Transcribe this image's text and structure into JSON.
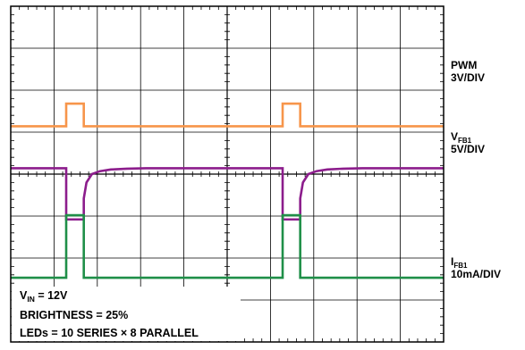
{
  "chart_data": {
    "type": "line",
    "grid": {
      "divisions_x": 10,
      "divisions_y": 8,
      "minor_ticks_per_div": 5,
      "shown": true
    },
    "conditions": {
      "vin": {
        "symbol": "V",
        "subscript": "IN",
        "value": " = 12V"
      },
      "brightness": "BRIGHTNESS = 25%",
      "leds": "LEDs = 10 SERIES × 8 PARALLEL"
    },
    "series": [
      {
        "key": "pwm",
        "name": "PWM",
        "scale": "3V/DIV",
        "color": "#f7954a",
        "x_div": [
          0,
          2.05,
          2.05,
          2.7,
          2.7,
          10.05,
          10.05,
          10.7,
          10.7,
          16
        ],
        "y_div": [
          1.14,
          1.14,
          1.68,
          1.68,
          1.14,
          1.14,
          1.68,
          1.68,
          1.14,
          1.14
        ]
      },
      {
        "key": "vfb1",
        "name": "V",
        "subscript": "FB1",
        "scale": "5V/DIV",
        "color": "#8c1d8c",
        "x_div": [
          0,
          2.05,
          2.05,
          2.7,
          2.7,
          2.8,
          3.0,
          3.3,
          3.7,
          4.3,
          5.0,
          10.05,
          10.05,
          10.7,
          10.7,
          10.8,
          11.0,
          11.3,
          11.7,
          12.3,
          13.0,
          16
        ],
        "y_div": [
          0.14,
          0.14,
          -1.08,
          -1.08,
          -0.58,
          -0.2,
          0.0,
          0.07,
          0.11,
          0.13,
          0.14,
          0.14,
          -1.08,
          -1.08,
          -0.58,
          -0.2,
          0.0,
          0.07,
          0.11,
          0.13,
          0.14,
          0.14
        ]
      },
      {
        "key": "ifb1",
        "name": "I",
        "subscript": "FB1",
        "scale": "10mA/DIV",
        "color": "#1f8f48",
        "x_div": [
          0,
          2.05,
          2.05,
          2.7,
          2.7,
          10.05,
          10.05,
          10.7,
          10.7,
          16
        ],
        "y_div": [
          -2.47,
          -2.47,
          -0.98,
          -0.98,
          -2.47,
          -2.47,
          -0.98,
          -0.98,
          -2.47,
          -2.47
        ]
      }
    ]
  }
}
